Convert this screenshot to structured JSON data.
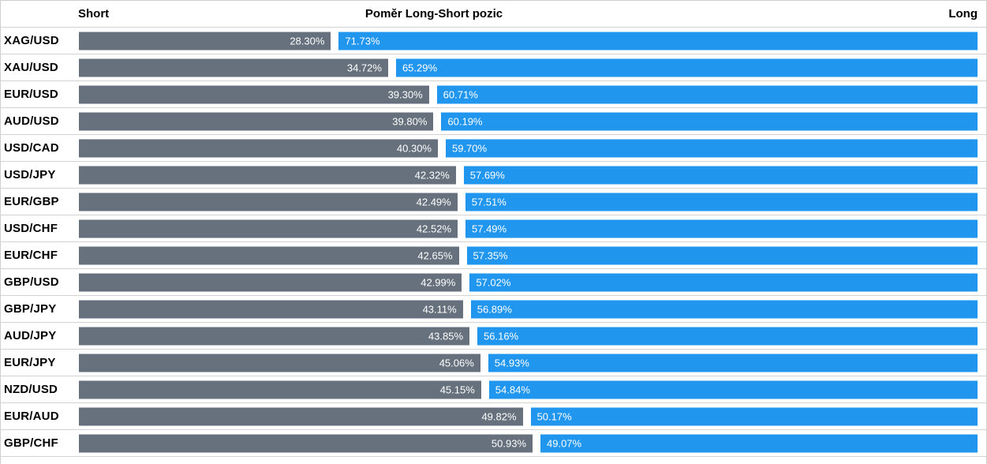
{
  "header": {
    "short_label": "Short",
    "title": "Poměr Long-Short pozic",
    "long_label": "Long"
  },
  "colors": {
    "short_bar": "#66717D",
    "long_bar": "#2196EE",
    "bar_text": "#FFFFFF",
    "separator": "#D3D3D3",
    "label_text": "#000000"
  },
  "chart_data": {
    "type": "bar",
    "subtype": "horizontal-stacked-100pct",
    "title": "Poměr Long-Short pozic",
    "legend": [
      "Short",
      "Long"
    ],
    "legend_position": "header-row (Short left, Long right)",
    "grid": false,
    "value_range": [
      0,
      100
    ],
    "categories": [
      "XAG/USD",
      "XAU/USD",
      "EUR/USD",
      "AUD/USD",
      "USD/CAD",
      "USD/JPY",
      "EUR/GBP",
      "USD/CHF",
      "EUR/CHF",
      "GBP/USD",
      "GBP/JPY",
      "AUD/JPY",
      "EUR/JPY",
      "NZD/USD",
      "EUR/AUD",
      "GBP/CHF"
    ],
    "series": [
      {
        "name": "Short",
        "values": [
          28.3,
          34.72,
          39.3,
          39.8,
          40.3,
          42.32,
          42.49,
          42.52,
          42.65,
          42.99,
          43.11,
          43.85,
          45.06,
          45.15,
          49.82,
          50.93
        ]
      },
      {
        "name": "Long",
        "values": [
          71.73,
          65.29,
          60.71,
          60.19,
          59.7,
          57.69,
          57.51,
          57.49,
          57.35,
          57.02,
          56.89,
          56.16,
          54.93,
          54.84,
          50.17,
          49.07
        ]
      }
    ]
  },
  "rows": [
    {
      "pair": "XAG/USD",
      "short": "28.30%",
      "long": "71.73%"
    },
    {
      "pair": "XAU/USD",
      "short": "34.72%",
      "long": "65.29%"
    },
    {
      "pair": "EUR/USD",
      "short": "39.30%",
      "long": "60.71%"
    },
    {
      "pair": "AUD/USD",
      "short": "39.80%",
      "long": "60.19%"
    },
    {
      "pair": "USD/CAD",
      "short": "40.30%",
      "long": "59.70%"
    },
    {
      "pair": "USD/JPY",
      "short": "42.32%",
      "long": "57.69%"
    },
    {
      "pair": "EUR/GBP",
      "short": "42.49%",
      "long": "57.51%"
    },
    {
      "pair": "USD/CHF",
      "short": "42.52%",
      "long": "57.49%"
    },
    {
      "pair": "EUR/CHF",
      "short": "42.65%",
      "long": "57.35%"
    },
    {
      "pair": "GBP/USD",
      "short": "42.99%",
      "long": "57.02%"
    },
    {
      "pair": "GBP/JPY",
      "short": "43.11%",
      "long": "56.89%"
    },
    {
      "pair": "AUD/JPY",
      "short": "43.85%",
      "long": "56.16%"
    },
    {
      "pair": "EUR/JPY",
      "short": "45.06%",
      "long": "54.93%"
    },
    {
      "pair": "NZD/USD",
      "short": "45.15%",
      "long": "54.84%"
    },
    {
      "pair": "EUR/AUD",
      "short": "49.82%",
      "long": "50.17%"
    },
    {
      "pair": "GBP/CHF",
      "short": "50.93%",
      "long": "49.07%"
    }
  ]
}
